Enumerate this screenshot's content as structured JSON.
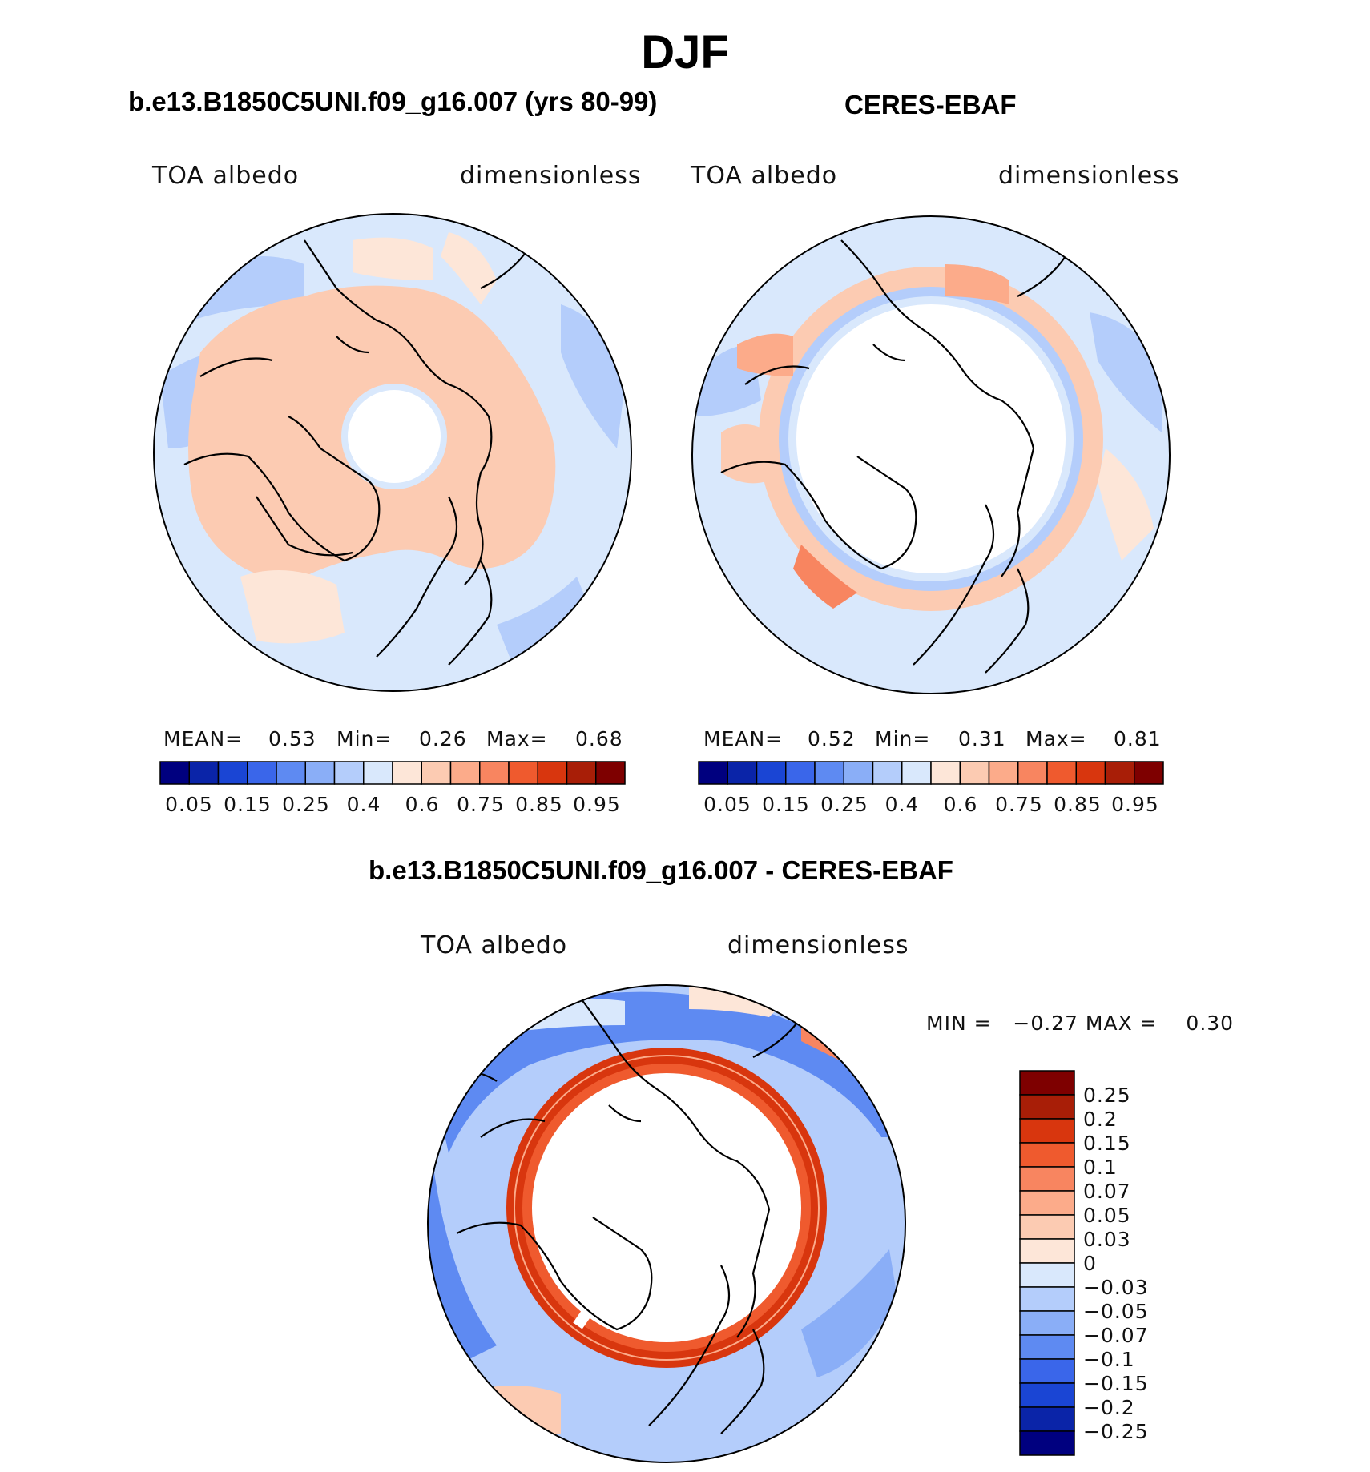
{
  "title": "DJF",
  "panels": [
    {
      "id": "model",
      "title": "b.e13.B1850C5UNI.f09_g16.007 (yrs 80-99)",
      "variable": "TOA albedo",
      "units": "dimensionless",
      "stats": {
        "mean_label": "MEAN=",
        "mean": "0.53",
        "min_label": "Min=",
        "min": "0.26",
        "max_label": "Max=",
        "max": "0.68"
      },
      "colorbar_ticks": [
        "0.05",
        "0.15",
        "0.25",
        "0.4",
        "0.6",
        "0.75",
        "0.85",
        "0.95"
      ]
    },
    {
      "id": "obs",
      "title": "CERES-EBAF",
      "variable": "TOA albedo",
      "units": "dimensionless",
      "stats": {
        "mean_label": "MEAN=",
        "mean": "0.52",
        "min_label": "Min=",
        "min": "0.31",
        "max_label": "Max=",
        "max": "0.81"
      },
      "colorbar_ticks": [
        "0.05",
        "0.15",
        "0.25",
        "0.4",
        "0.6",
        "0.75",
        "0.85",
        "0.95"
      ]
    }
  ],
  "diff_panel": {
    "title": "b.e13.B1850C5UNI.f09_g16.007 - CERES-EBAF",
    "variable": "TOA albedo",
    "units": "dimensionless",
    "minmax_text": "MIN =   −0.27 MAX =    0.30",
    "colorbar_labels": [
      "0.25",
      "0.2",
      "0.15",
      "0.1",
      "0.07",
      "0.05",
      "0.03",
      "0",
      "−0.03",
      "−0.05",
      "−0.07",
      "−0.1",
      "−0.15",
      "−0.2",
      "−0.25"
    ]
  },
  "colors": {
    "abs_scale": [
      "#00007f",
      "#0a24a8",
      "#1a45d4",
      "#3a66ea",
      "#5e8af2",
      "#8aaef7",
      "#b4cdfb",
      "#d9e8fc",
      "#fde6d8",
      "#fccbb2",
      "#fcab8a",
      "#f88560",
      "#ef5a2e",
      "#d8360e",
      "#a81e07",
      "#7e0000"
    ],
    "diff_scale": [
      "#7e0000",
      "#a81e07",
      "#d8360e",
      "#ef5a2e",
      "#f88560",
      "#fcab8a",
      "#fccbb2",
      "#fde6d8",
      "#d9e8fc",
      "#b4cdfb",
      "#8aaef7",
      "#5e8af2",
      "#3a66ea",
      "#1a45d4",
      "#0a24a8",
      "#00007f"
    ]
  }
}
